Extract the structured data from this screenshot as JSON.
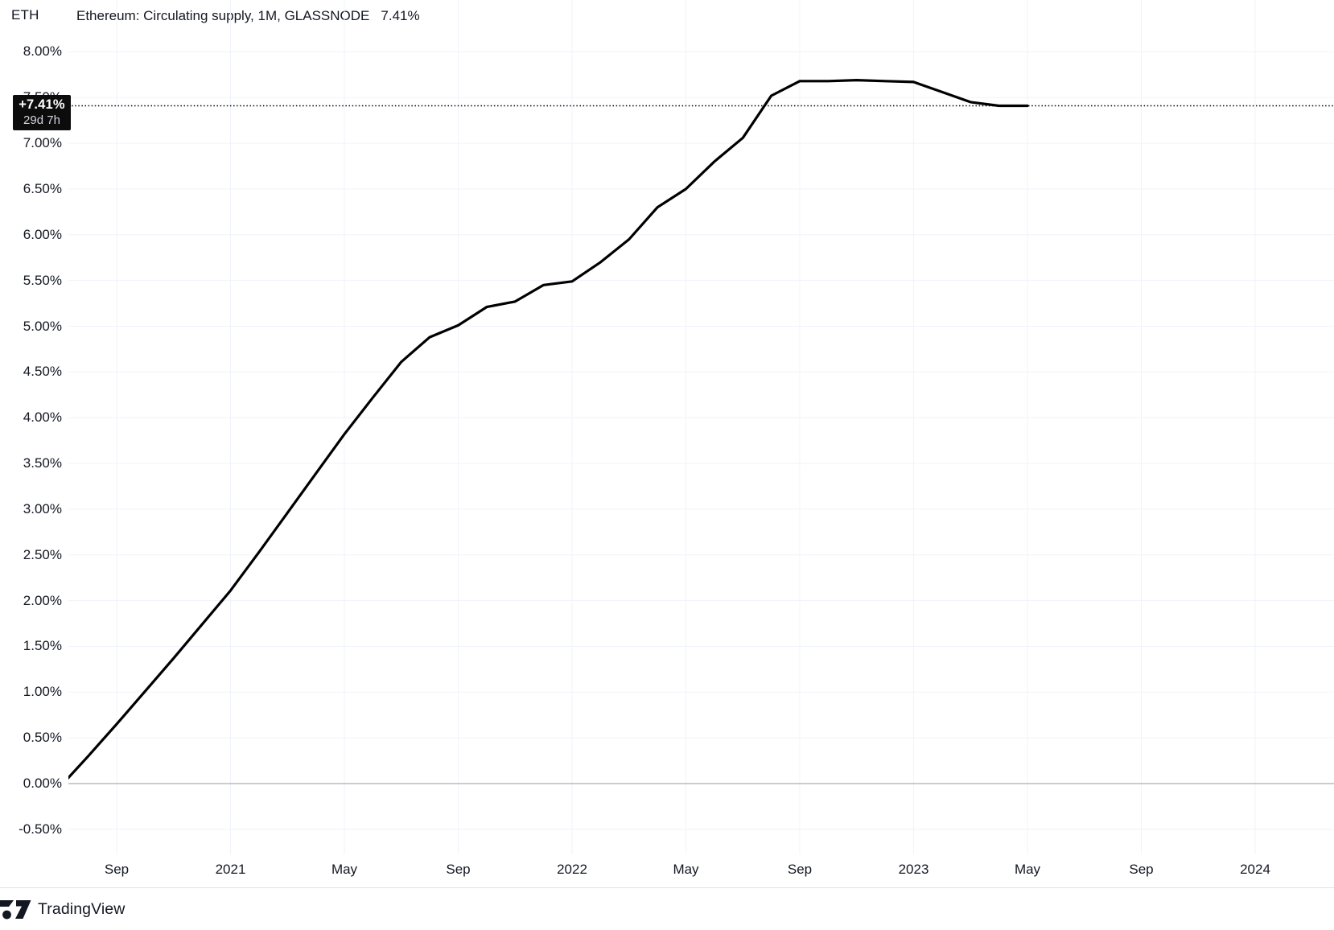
{
  "legend": {
    "symbol": "ETH",
    "indicator_title": "Ethereum: Circulating supply, 1M, GLASSNODE",
    "indicator_value": "7.41%"
  },
  "price_label": {
    "value": "+7.41%",
    "countdown": "29d 7h"
  },
  "footer": {
    "brand": "TradingView"
  },
  "colors": {
    "text": "#131722",
    "line": "#000000",
    "dotted_line": "#000000",
    "grid": "#f0f3fa",
    "zero_line": "#9598a1",
    "badge_bg": "#0c0c0c",
    "badge_text": "#ffffff",
    "badge_subtext": "#d1d4dc",
    "separator": "#e0e3eb"
  },
  "chart_data": {
    "type": "line",
    "title": "Ethereum: Circulating supply, 1M, GLASSNODE",
    "legend_position": "top-left",
    "grid": true,
    "last_value": 7.41,
    "last_value_label": "+7.41%",
    "bar_countdown": "29d 7h",
    "ylim": [
      -0.5,
      8.0
    ],
    "y_ticks": [
      {
        "label": "8.00%",
        "v": 8.0
      },
      {
        "label": "7.50%",
        "v": 7.5
      },
      {
        "label": "7.00%",
        "v": 7.0
      },
      {
        "label": "6.50%",
        "v": 6.5
      },
      {
        "label": "6.00%",
        "v": 6.0
      },
      {
        "label": "5.50%",
        "v": 5.5
      },
      {
        "label": "5.00%",
        "v": 5.0
      },
      {
        "label": "4.50%",
        "v": 4.5
      },
      {
        "label": "4.00%",
        "v": 4.0
      },
      {
        "label": "3.50%",
        "v": 3.5
      },
      {
        "label": "3.00%",
        "v": 3.0
      },
      {
        "label": "2.50%",
        "v": 2.5
      },
      {
        "label": "2.00%",
        "v": 2.0
      },
      {
        "label": "1.50%",
        "v": 1.5
      },
      {
        "label": "1.00%",
        "v": 1.0
      },
      {
        "label": "0.50%",
        "v": 0.5
      },
      {
        "label": "0.00%",
        "v": 0.0
      },
      {
        "label": "-0.50%",
        "v": -0.5
      }
    ],
    "x_months_origin": "2020-09",
    "x_ticks": [
      {
        "label": "Sep",
        "m": 0
      },
      {
        "label": "2021",
        "m": 4
      },
      {
        "label": "May",
        "m": 8
      },
      {
        "label": "Sep",
        "m": 12
      },
      {
        "label": "2022",
        "m": 16
      },
      {
        "label": "May",
        "m": 20
      },
      {
        "label": "Sep",
        "m": 24
      },
      {
        "label": "2023",
        "m": 28
      },
      {
        "label": "May",
        "m": 32
      },
      {
        "label": "Sep",
        "m": 36
      },
      {
        "label": "2024",
        "m": 40
      }
    ],
    "series": [
      {
        "name": "Ethereum: Circulating supply % change",
        "points": [
          [
            -2,
            -0.04
          ],
          [
            -1,
            0.3
          ],
          [
            0,
            0.65
          ],
          [
            1,
            1.01
          ],
          [
            2,
            1.37
          ],
          [
            3,
            1.74
          ],
          [
            4,
            2.11
          ],
          [
            5,
            2.53
          ],
          [
            6,
            2.96
          ],
          [
            7,
            3.39
          ],
          [
            8,
            3.82
          ],
          [
            9,
            4.22
          ],
          [
            10,
            4.61
          ],
          [
            11,
            4.88
          ],
          [
            12,
            5.01
          ],
          [
            13,
            5.21
          ],
          [
            14,
            5.27
          ],
          [
            15,
            5.45
          ],
          [
            16,
            5.49
          ],
          [
            17,
            5.7
          ],
          [
            18,
            5.95
          ],
          [
            19,
            6.3
          ],
          [
            20,
            6.5
          ],
          [
            21,
            6.8
          ],
          [
            22,
            7.06
          ],
          [
            23,
            7.52
          ],
          [
            24,
            7.68
          ],
          [
            25,
            7.68
          ],
          [
            26,
            7.69
          ],
          [
            27,
            7.68
          ],
          [
            28,
            7.67
          ],
          [
            29,
            7.56
          ],
          [
            30,
            7.45
          ],
          [
            31,
            7.41
          ],
          [
            32,
            7.41
          ]
        ]
      }
    ]
  }
}
